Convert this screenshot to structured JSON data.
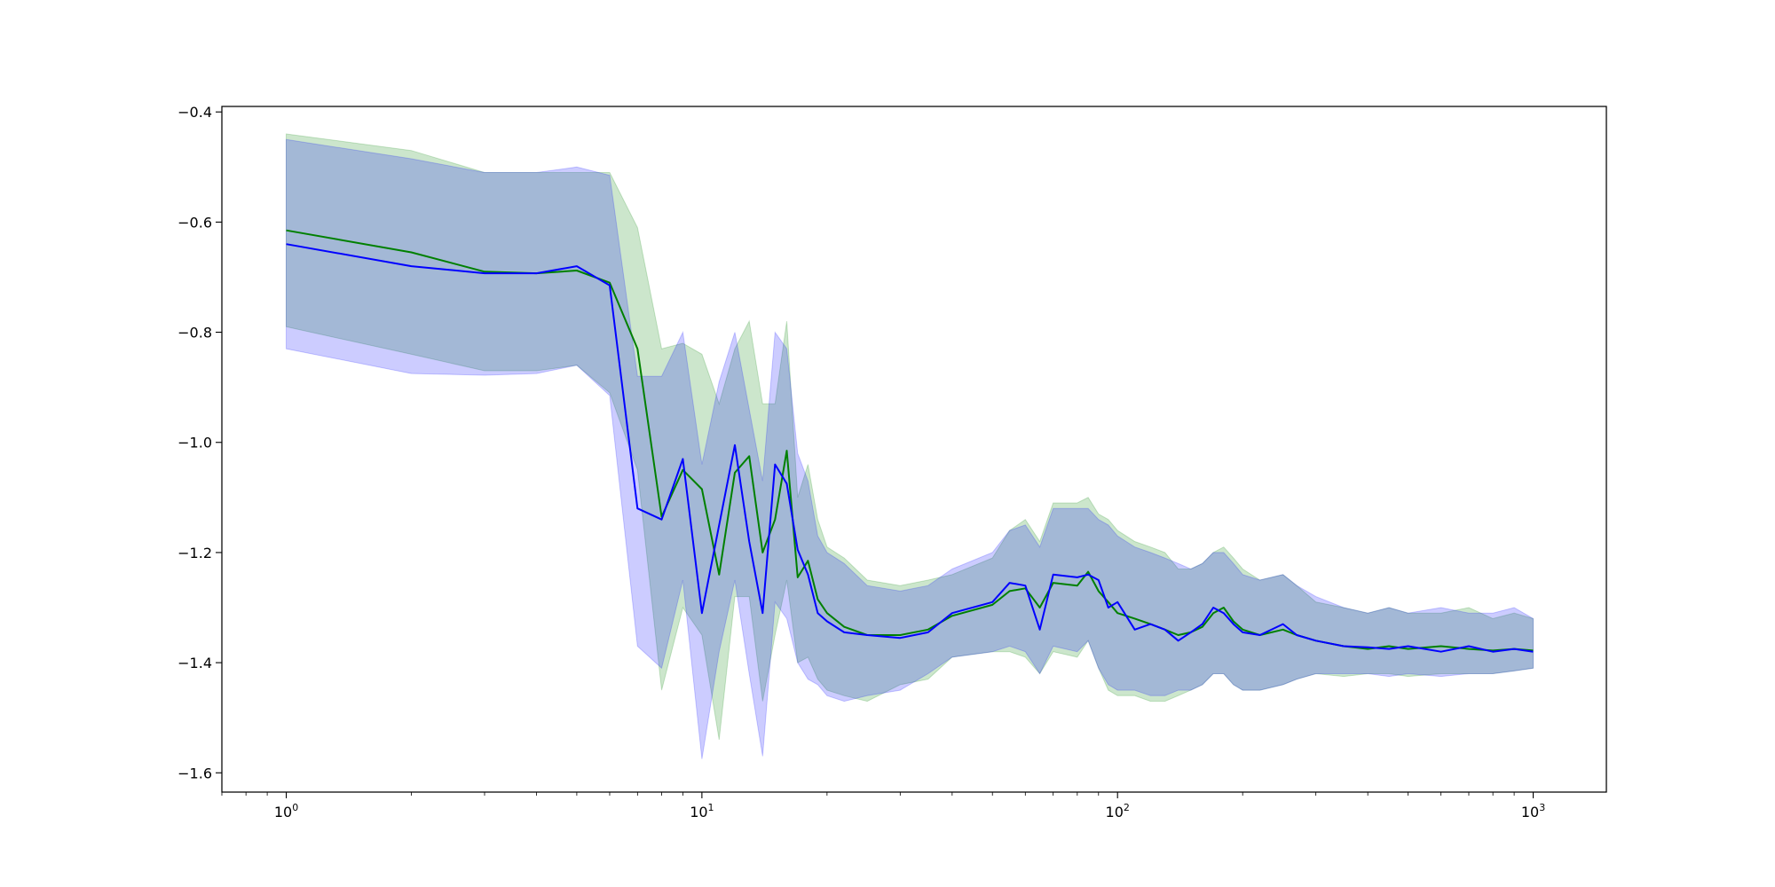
{
  "chart_data": {
    "type": "line",
    "title": "",
    "xlabel": "",
    "ylabel": "",
    "x_scale": "log",
    "xlim": [
      0.7,
      1500
    ],
    "ylim": [
      -1.635,
      -0.39
    ],
    "grid": false,
    "x_major_ticks": [
      {
        "value": 1,
        "base": "10",
        "exp": "0"
      },
      {
        "value": 10,
        "base": "10",
        "exp": "1"
      },
      {
        "value": 100,
        "base": "10",
        "exp": "2"
      },
      {
        "value": 1000,
        "base": "10",
        "exp": "3"
      }
    ],
    "y_ticks": [
      {
        "value": -0.4,
        "label": "−0.4"
      },
      {
        "value": -0.6,
        "label": "−0.6"
      },
      {
        "value": -0.8,
        "label": "−0.8"
      },
      {
        "value": -1.0,
        "label": "−1.0"
      },
      {
        "value": -1.2,
        "label": "−1.2"
      },
      {
        "value": -1.4,
        "label": "−1.4"
      },
      {
        "value": -1.6,
        "label": "−1.6"
      }
    ],
    "series": [
      {
        "color": "#008000",
        "band_color": "#008000",
        "band_opacity": 0.2,
        "x": [
          1,
          2,
          3,
          4,
          5,
          6,
          7,
          8,
          9,
          10,
          11,
          12,
          13,
          14,
          15,
          16,
          17,
          18,
          19,
          20,
          22,
          25,
          30,
          35,
          40,
          50,
          55,
          60,
          65,
          70,
          80,
          85,
          90,
          95,
          100,
          110,
          120,
          130,
          140,
          150,
          160,
          170,
          180,
          190,
          200,
          220,
          250,
          270,
          300,
          350,
          400,
          450,
          500,
          600,
          700,
          800,
          900,
          1000
        ],
        "y": [
          -0.615,
          -0.655,
          -0.69,
          -0.693,
          -0.688,
          -0.71,
          -0.83,
          -1.135,
          -1.05,
          -1.085,
          -1.24,
          -1.055,
          -1.025,
          -1.2,
          -1.14,
          -1.015,
          -1.245,
          -1.215,
          -1.285,
          -1.31,
          -1.335,
          -1.35,
          -1.35,
          -1.34,
          -1.315,
          -1.295,
          -1.27,
          -1.265,
          -1.3,
          -1.255,
          -1.26,
          -1.235,
          -1.27,
          -1.29,
          -1.31,
          -1.32,
          -1.33,
          -1.34,
          -1.35,
          -1.345,
          -1.335,
          -1.31,
          -1.3,
          -1.325,
          -1.34,
          -1.35,
          -1.34,
          -1.35,
          -1.36,
          -1.37,
          -1.375,
          -1.37,
          -1.375,
          -1.37,
          -1.375,
          -1.378,
          -1.375,
          -1.378
        ],
        "lower": [
          -0.79,
          -0.84,
          -0.87,
          -0.87,
          -0.86,
          -0.91,
          -1.05,
          -1.45,
          -1.3,
          -1.35,
          -1.54,
          -1.28,
          -1.28,
          -1.47,
          -1.35,
          -1.25,
          -1.4,
          -1.39,
          -1.43,
          -1.45,
          -1.46,
          -1.47,
          -1.44,
          -1.43,
          -1.39,
          -1.38,
          -1.38,
          -1.39,
          -1.42,
          -1.38,
          -1.39,
          -1.36,
          -1.41,
          -1.45,
          -1.46,
          -1.46,
          -1.47,
          -1.47,
          -1.46,
          -1.45,
          -1.44,
          -1.42,
          -1.42,
          -1.44,
          -1.45,
          -1.45,
          -1.44,
          -1.43,
          -1.42,
          -1.425,
          -1.42,
          -1.42,
          -1.425,
          -1.42,
          -1.42,
          -1.42,
          -1.415,
          -1.41
        ],
        "upper": [
          -0.44,
          -0.47,
          -0.51,
          -0.51,
          -0.51,
          -0.51,
          -0.61,
          -0.83,
          -0.82,
          -0.84,
          -0.93,
          -0.83,
          -0.78,
          -0.93,
          -0.93,
          -0.78,
          -1.1,
          -1.04,
          -1.14,
          -1.19,
          -1.21,
          -1.25,
          -1.26,
          -1.25,
          -1.24,
          -1.21,
          -1.16,
          -1.14,
          -1.18,
          -1.11,
          -1.11,
          -1.1,
          -1.13,
          -1.14,
          -1.16,
          -1.18,
          -1.19,
          -1.2,
          -1.23,
          -1.23,
          -1.22,
          -1.2,
          -1.19,
          -1.21,
          -1.23,
          -1.25,
          -1.24,
          -1.26,
          -1.29,
          -1.3,
          -1.31,
          -1.3,
          -1.31,
          -1.31,
          -1.3,
          -1.32,
          -1.31,
          -1.32
        ]
      },
      {
        "color": "#0000ff",
        "band_color": "#0000ff",
        "band_opacity": 0.2,
        "x": [
          1,
          2,
          3,
          4,
          5,
          6,
          7,
          8,
          9,
          10,
          11,
          12,
          13,
          14,
          15,
          16,
          17,
          18,
          19,
          20,
          22,
          25,
          30,
          35,
          40,
          50,
          55,
          60,
          65,
          70,
          80,
          85,
          90,
          95,
          100,
          110,
          120,
          130,
          140,
          150,
          160,
          170,
          180,
          190,
          200,
          220,
          250,
          270,
          300,
          350,
          400,
          450,
          500,
          600,
          700,
          800,
          900,
          1000
        ],
        "y": [
          -0.64,
          -0.68,
          -0.693,
          -0.693,
          -0.68,
          -0.715,
          -1.12,
          -1.14,
          -1.03,
          -1.31,
          -1.15,
          -1.005,
          -1.18,
          -1.31,
          -1.04,
          -1.075,
          -1.195,
          -1.24,
          -1.31,
          -1.325,
          -1.345,
          -1.35,
          -1.355,
          -1.345,
          -1.31,
          -1.29,
          -1.255,
          -1.26,
          -1.34,
          -1.24,
          -1.245,
          -1.24,
          -1.25,
          -1.3,
          -1.29,
          -1.34,
          -1.33,
          -1.34,
          -1.36,
          -1.345,
          -1.33,
          -1.3,
          -1.31,
          -1.33,
          -1.345,
          -1.35,
          -1.33,
          -1.35,
          -1.36,
          -1.37,
          -1.372,
          -1.375,
          -1.37,
          -1.38,
          -1.37,
          -1.38,
          -1.375,
          -1.38
        ],
        "lower": [
          -0.83,
          -0.875,
          -0.878,
          -0.875,
          -0.86,
          -0.915,
          -1.37,
          -1.41,
          -1.25,
          -1.575,
          -1.38,
          -1.25,
          -1.42,
          -1.57,
          -1.29,
          -1.32,
          -1.4,
          -1.43,
          -1.44,
          -1.46,
          -1.47,
          -1.46,
          -1.45,
          -1.42,
          -1.39,
          -1.38,
          -1.37,
          -1.38,
          -1.42,
          -1.37,
          -1.38,
          -1.36,
          -1.41,
          -1.44,
          -1.45,
          -1.45,
          -1.46,
          -1.46,
          -1.45,
          -1.45,
          -1.44,
          -1.42,
          -1.42,
          -1.44,
          -1.45,
          -1.45,
          -1.44,
          -1.43,
          -1.42,
          -1.42,
          -1.42,
          -1.425,
          -1.42,
          -1.425,
          -1.42,
          -1.42,
          -1.415,
          -1.41
        ],
        "upper": [
          -0.45,
          -0.485,
          -0.51,
          -0.51,
          -0.5,
          -0.515,
          -0.88,
          -0.88,
          -0.8,
          -1.04,
          -0.89,
          -0.8,
          -0.94,
          -1.07,
          -0.8,
          -0.83,
          -1.02,
          -1.07,
          -1.17,
          -1.2,
          -1.22,
          -1.26,
          -1.27,
          -1.26,
          -1.23,
          -1.2,
          -1.16,
          -1.15,
          -1.19,
          -1.12,
          -1.12,
          -1.12,
          -1.14,
          -1.15,
          -1.17,
          -1.19,
          -1.2,
          -1.21,
          -1.22,
          -1.23,
          -1.22,
          -1.2,
          -1.2,
          -1.22,
          -1.24,
          -1.25,
          -1.24,
          -1.26,
          -1.28,
          -1.3,
          -1.31,
          -1.3,
          -1.31,
          -1.3,
          -1.31,
          -1.31,
          -1.3,
          -1.32
        ]
      }
    ]
  }
}
